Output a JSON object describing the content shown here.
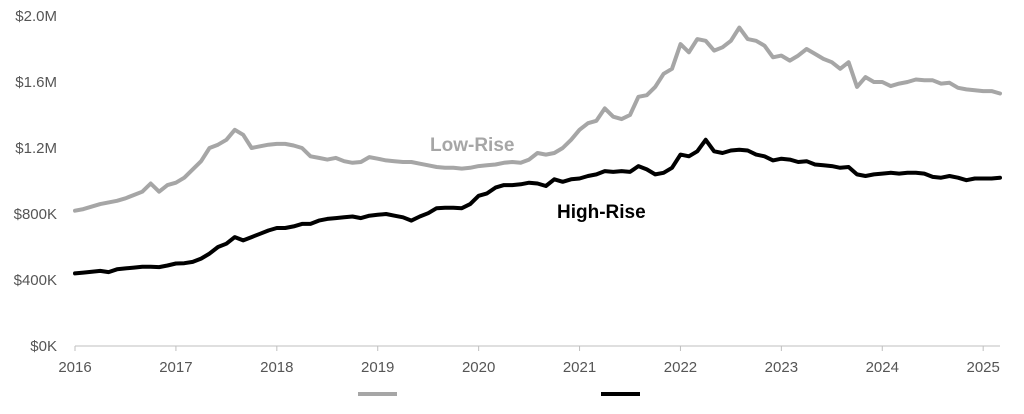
{
  "chart_data": {
    "type": "line",
    "title": "",
    "xlabel": "",
    "ylabel": "",
    "ylim": [
      0,
      2000000
    ],
    "xlim": [
      "2016-01",
      "2025-03"
    ],
    "grid": false,
    "legend": "bottom-center",
    "y_ticks": [
      {
        "value": 0,
        "label": "$0K"
      },
      {
        "value": 400000,
        "label": "$400K"
      },
      {
        "value": 800000,
        "label": "$800K"
      },
      {
        "value": 1200000,
        "label": "$1.2M"
      },
      {
        "value": 1600000,
        "label": "$1.6M"
      },
      {
        "value": 2000000,
        "label": "$2.0M"
      }
    ],
    "x_ticks": [
      {
        "value": 2016,
        "label": "2016"
      },
      {
        "value": 2017,
        "label": "2017"
      },
      {
        "value": 2018,
        "label": "2018"
      },
      {
        "value": 2019,
        "label": "2019"
      },
      {
        "value": 2020,
        "label": "2020"
      },
      {
        "value": 2021,
        "label": "2021"
      },
      {
        "value": 2022,
        "label": "2022"
      },
      {
        "value": 2023,
        "label": "2023"
      },
      {
        "value": 2024,
        "label": "2024"
      },
      {
        "value": 2025,
        "label": "2025"
      }
    ],
    "series": [
      {
        "name": "Low-Rise",
        "color": "#a6a6a6",
        "points": [
          [
            "2016-01",
            820000
          ],
          [
            "2016-02",
            830000
          ],
          [
            "2016-03",
            845000
          ],
          [
            "2016-04",
            860000
          ],
          [
            "2016-05",
            870000
          ],
          [
            "2016-06",
            880000
          ],
          [
            "2016-07",
            895000
          ],
          [
            "2016-08",
            915000
          ],
          [
            "2016-09",
            935000
          ],
          [
            "2016-10",
            985000
          ],
          [
            "2016-11",
            935000
          ],
          [
            "2016-12",
            975000
          ],
          [
            "2017-01",
            990000
          ],
          [
            "2017-02",
            1020000
          ],
          [
            "2017-03",
            1070000
          ],
          [
            "2017-04",
            1120000
          ],
          [
            "2017-05",
            1200000
          ],
          [
            "2017-06",
            1220000
          ],
          [
            "2017-07",
            1250000
          ],
          [
            "2017-08",
            1310000
          ],
          [
            "2017-09",
            1280000
          ],
          [
            "2017-10",
            1200000
          ],
          [
            "2017-11",
            1210000
          ],
          [
            "2017-12",
            1220000
          ],
          [
            "2018-01",
            1225000
          ],
          [
            "2018-02",
            1225000
          ],
          [
            "2018-03",
            1215000
          ],
          [
            "2018-04",
            1200000
          ],
          [
            "2018-05",
            1150000
          ],
          [
            "2018-06",
            1140000
          ],
          [
            "2018-07",
            1130000
          ],
          [
            "2018-08",
            1140000
          ],
          [
            "2018-09",
            1120000
          ],
          [
            "2018-10",
            1110000
          ],
          [
            "2018-11",
            1115000
          ],
          [
            "2018-12",
            1145000
          ],
          [
            "2019-01",
            1135000
          ],
          [
            "2019-02",
            1125000
          ],
          [
            "2019-03",
            1120000
          ],
          [
            "2019-04",
            1115000
          ],
          [
            "2019-05",
            1115000
          ],
          [
            "2019-06",
            1105000
          ],
          [
            "2019-07",
            1095000
          ],
          [
            "2019-08",
            1085000
          ],
          [
            "2019-09",
            1080000
          ],
          [
            "2019-10",
            1080000
          ],
          [
            "2019-11",
            1075000
          ],
          [
            "2019-12",
            1080000
          ],
          [
            "2020-01",
            1090000
          ],
          [
            "2020-02",
            1095000
          ],
          [
            "2020-03",
            1100000
          ],
          [
            "2020-04",
            1110000
          ],
          [
            "2020-05",
            1115000
          ],
          [
            "2020-06",
            1110000
          ],
          [
            "2020-07",
            1130000
          ],
          [
            "2020-08",
            1170000
          ],
          [
            "2020-09",
            1160000
          ],
          [
            "2020-10",
            1170000
          ],
          [
            "2020-11",
            1200000
          ],
          [
            "2020-12",
            1250000
          ],
          [
            "2021-01",
            1310000
          ],
          [
            "2021-02",
            1350000
          ],
          [
            "2021-03",
            1365000
          ],
          [
            "2021-04",
            1440000
          ],
          [
            "2021-05",
            1390000
          ],
          [
            "2021-06",
            1375000
          ],
          [
            "2021-07",
            1400000
          ],
          [
            "2021-08",
            1510000
          ],
          [
            "2021-09",
            1520000
          ],
          [
            "2021-10",
            1570000
          ],
          [
            "2021-11",
            1650000
          ],
          [
            "2021-12",
            1680000
          ],
          [
            "2022-01",
            1830000
          ],
          [
            "2022-02",
            1780000
          ],
          [
            "2022-03",
            1860000
          ],
          [
            "2022-04",
            1850000
          ],
          [
            "2022-05",
            1790000
          ],
          [
            "2022-06",
            1810000
          ],
          [
            "2022-07",
            1850000
          ],
          [
            "2022-08",
            1930000
          ],
          [
            "2022-09",
            1860000
          ],
          [
            "2022-10",
            1850000
          ],
          [
            "2022-11",
            1820000
          ],
          [
            "2022-12",
            1750000
          ],
          [
            "2023-01",
            1760000
          ],
          [
            "2023-02",
            1730000
          ],
          [
            "2023-03",
            1760000
          ],
          [
            "2023-04",
            1800000
          ],
          [
            "2023-05",
            1770000
          ],
          [
            "2023-06",
            1740000
          ],
          [
            "2023-07",
            1720000
          ],
          [
            "2023-08",
            1680000
          ],
          [
            "2023-09",
            1720000
          ],
          [
            "2023-10",
            1570000
          ],
          [
            "2023-11",
            1630000
          ],
          [
            "2023-12",
            1600000
          ],
          [
            "2024-01",
            1600000
          ],
          [
            "2024-02",
            1575000
          ],
          [
            "2024-03",
            1590000
          ],
          [
            "2024-04",
            1600000
          ],
          [
            "2024-05",
            1615000
          ],
          [
            "2024-06",
            1610000
          ],
          [
            "2024-07",
            1610000
          ],
          [
            "2024-08",
            1590000
          ],
          [
            "2024-09",
            1595000
          ],
          [
            "2024-10",
            1565000
          ],
          [
            "2024-11",
            1555000
          ],
          [
            "2024-12",
            1550000
          ],
          [
            "2025-01",
            1545000
          ],
          [
            "2025-02",
            1545000
          ],
          [
            "2025-03",
            1530000
          ]
        ]
      },
      {
        "name": "High-Rise",
        "color": "#000000",
        "points": [
          [
            "2016-01",
            440000
          ],
          [
            "2016-02",
            445000
          ],
          [
            "2016-03",
            450000
          ],
          [
            "2016-04",
            455000
          ],
          [
            "2016-05",
            448000
          ],
          [
            "2016-06",
            465000
          ],
          [
            "2016-07",
            470000
          ],
          [
            "2016-08",
            475000
          ],
          [
            "2016-09",
            480000
          ],
          [
            "2016-10",
            480000
          ],
          [
            "2016-11",
            478000
          ],
          [
            "2016-12",
            488000
          ],
          [
            "2017-01",
            500000
          ],
          [
            "2017-02",
            502000
          ],
          [
            "2017-03",
            510000
          ],
          [
            "2017-04",
            530000
          ],
          [
            "2017-05",
            560000
          ],
          [
            "2017-06",
            600000
          ],
          [
            "2017-07",
            620000
          ],
          [
            "2017-08",
            660000
          ],
          [
            "2017-09",
            640000
          ],
          [
            "2017-10",
            660000
          ],
          [
            "2017-11",
            680000
          ],
          [
            "2017-12",
            700000
          ],
          [
            "2018-01",
            715000
          ],
          [
            "2018-02",
            715000
          ],
          [
            "2018-03",
            725000
          ],
          [
            "2018-04",
            740000
          ],
          [
            "2018-05",
            740000
          ],
          [
            "2018-06",
            760000
          ],
          [
            "2018-07",
            770000
          ],
          [
            "2018-08",
            775000
          ],
          [
            "2018-09",
            780000
          ],
          [
            "2018-10",
            785000
          ],
          [
            "2018-11",
            775000
          ],
          [
            "2018-12",
            790000
          ],
          [
            "2019-01",
            795000
          ],
          [
            "2019-02",
            800000
          ],
          [
            "2019-03",
            790000
          ],
          [
            "2019-04",
            780000
          ],
          [
            "2019-05",
            760000
          ],
          [
            "2019-06",
            785000
          ],
          [
            "2019-07",
            805000
          ],
          [
            "2019-08",
            835000
          ],
          [
            "2019-09",
            838000
          ],
          [
            "2019-10",
            838000
          ],
          [
            "2019-11",
            835000
          ],
          [
            "2019-12",
            860000
          ],
          [
            "2020-01",
            910000
          ],
          [
            "2020-02",
            925000
          ],
          [
            "2020-03",
            960000
          ],
          [
            "2020-04",
            975000
          ],
          [
            "2020-05",
            975000
          ],
          [
            "2020-06",
            980000
          ],
          [
            "2020-07",
            990000
          ],
          [
            "2020-08",
            985000
          ],
          [
            "2020-09",
            970000
          ],
          [
            "2020-10",
            1010000
          ],
          [
            "2020-11",
            995000
          ],
          [
            "2020-12",
            1010000
          ],
          [
            "2021-01",
            1015000
          ],
          [
            "2021-02",
            1030000
          ],
          [
            "2021-03",
            1040000
          ],
          [
            "2021-04",
            1060000
          ],
          [
            "2021-05",
            1055000
          ],
          [
            "2021-06",
            1060000
          ],
          [
            "2021-07",
            1055000
          ],
          [
            "2021-08",
            1090000
          ],
          [
            "2021-09",
            1070000
          ],
          [
            "2021-10",
            1040000
          ],
          [
            "2021-11",
            1050000
          ],
          [
            "2021-12",
            1080000
          ],
          [
            "2022-01",
            1160000
          ],
          [
            "2022-02",
            1150000
          ],
          [
            "2022-03",
            1180000
          ],
          [
            "2022-04",
            1250000
          ],
          [
            "2022-05",
            1180000
          ],
          [
            "2022-06",
            1170000
          ],
          [
            "2022-07",
            1185000
          ],
          [
            "2022-08",
            1190000
          ],
          [
            "2022-09",
            1185000
          ],
          [
            "2022-10",
            1160000
          ],
          [
            "2022-11",
            1150000
          ],
          [
            "2022-12",
            1125000
          ],
          [
            "2023-01",
            1135000
          ],
          [
            "2023-02",
            1130000
          ],
          [
            "2023-03",
            1115000
          ],
          [
            "2023-04",
            1120000
          ],
          [
            "2023-05",
            1100000
          ],
          [
            "2023-06",
            1095000
          ],
          [
            "2023-07",
            1090000
          ],
          [
            "2023-08",
            1080000
          ],
          [
            "2023-09",
            1085000
          ],
          [
            "2023-10",
            1040000
          ],
          [
            "2023-11",
            1030000
          ],
          [
            "2023-12",
            1040000
          ],
          [
            "2024-01",
            1045000
          ],
          [
            "2024-02",
            1050000
          ],
          [
            "2024-03",
            1045000
          ],
          [
            "2024-04",
            1050000
          ],
          [
            "2024-05",
            1050000
          ],
          [
            "2024-06",
            1045000
          ],
          [
            "2024-07",
            1025000
          ],
          [
            "2024-08",
            1020000
          ],
          [
            "2024-09",
            1030000
          ],
          [
            "2024-10",
            1020000
          ],
          [
            "2024-11",
            1005000
          ],
          [
            "2024-12",
            1015000
          ],
          [
            "2025-01",
            1015000
          ],
          [
            "2025-02",
            1015000
          ],
          [
            "2025-03",
            1020000
          ]
        ]
      }
    ]
  }
}
